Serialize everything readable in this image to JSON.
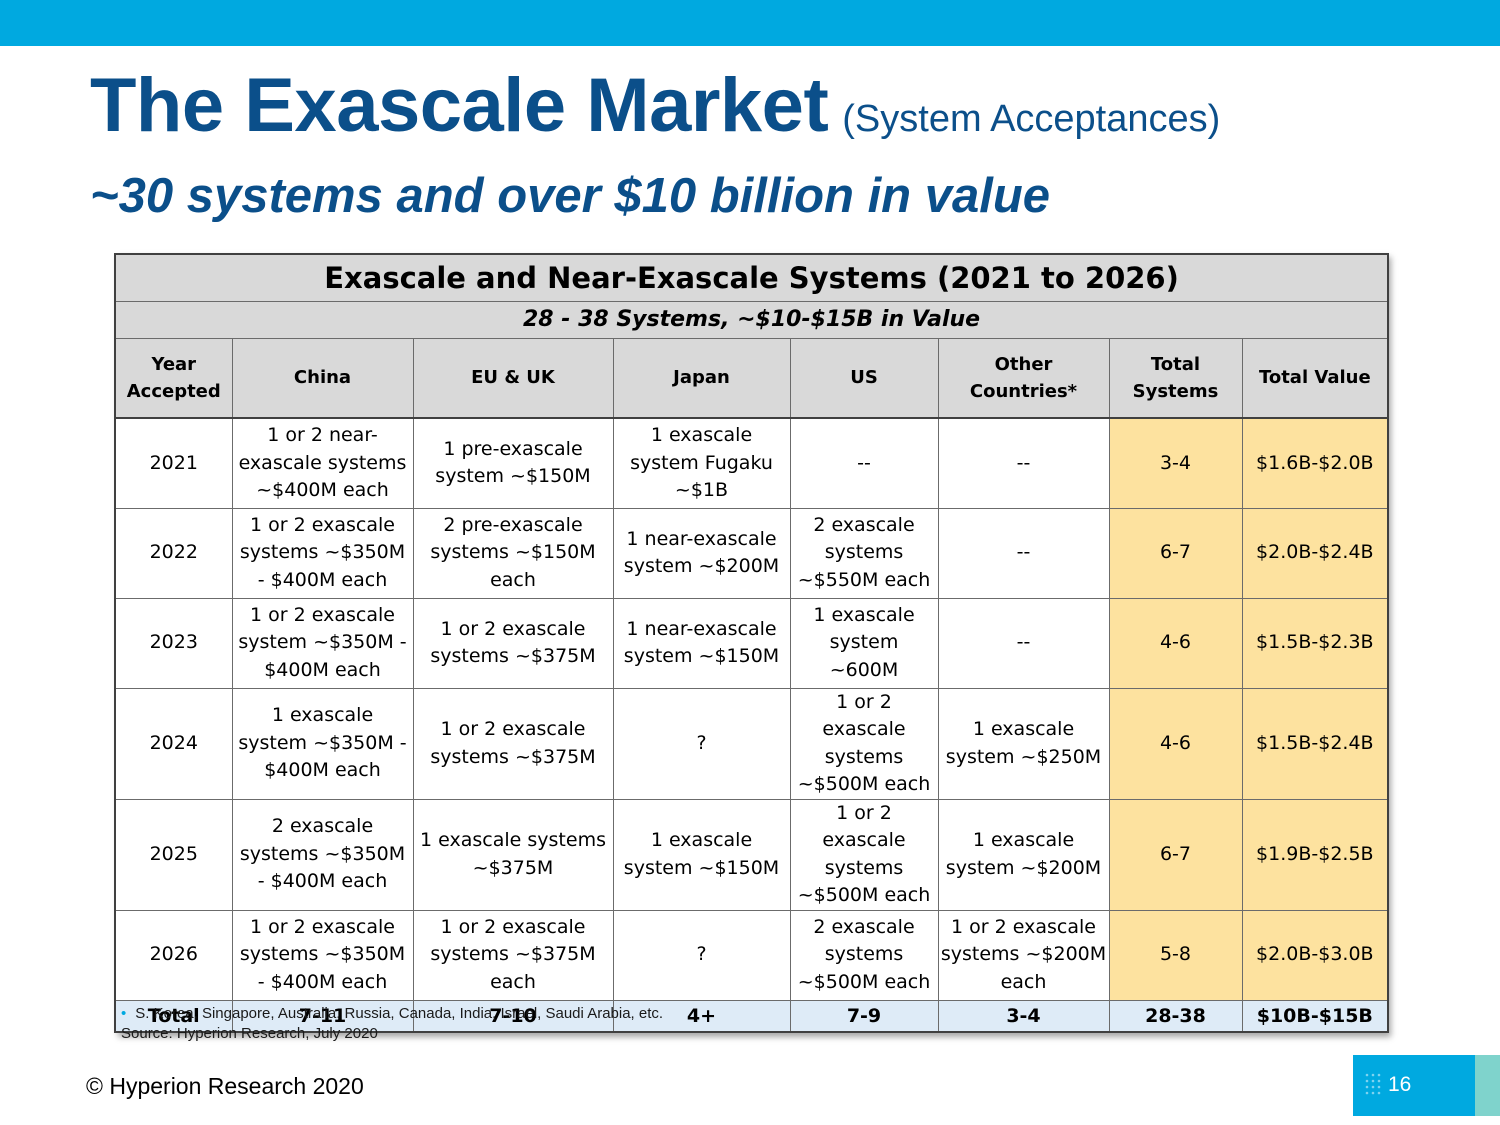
{
  "colors": {
    "accent": "#00a9e0",
    "title_blue": "#0b4f8a",
    "header_gray": "#d9d9d9",
    "total_blue": "#deebf7",
    "highlight_yellow": "#fde29f"
  },
  "title": {
    "main": "The Exascale Market",
    "paren": "(System Acceptances)"
  },
  "subtitle": "~30 systems and over $10 billion in value",
  "table": {
    "caption": "Exascale and Near-Exascale Systems (2021 to 2026)",
    "subcaption": "28 - 38 Systems, ~$10-$15B in Value",
    "headers": [
      "Year Accepted",
      "China",
      "EU & UK",
      "Japan",
      "US",
      "Other Countries*",
      "Total Systems",
      "Total Value"
    ],
    "rows": [
      [
        "2021",
        "1 or 2 near-exascale systems ~$400M each",
        "1 pre-exascale system ~$150M",
        "1 exascale system Fugaku  ~$1B",
        "--",
        "--",
        "3-4",
        "$1.6B-$2.0B"
      ],
      [
        "2022",
        "1 or 2 exascale systems ~$350M - $400M each",
        "2 pre-exascale systems ~$150M each",
        "1 near-exascale system ~$200M",
        "2 exascale systems ~$550M each",
        "--",
        "6-7",
        "$2.0B-$2.4B"
      ],
      [
        "2023",
        "1 or 2 exascale system ~$350M - $400M each",
        "1 or 2 exascale systems ~$375M",
        "1 near-exascale system ~$150M",
        "1 exascale system ~600M",
        "--",
        "4-6",
        "$1.5B-$2.3B"
      ],
      [
        "2024",
        "1 exascale system ~$350M - $400M each",
        "1 or 2 exascale systems ~$375M",
        "?",
        "1 or 2 exascale systems ~$500M each",
        "1 exascale system ~$250M",
        "4-6",
        "$1.5B-$2.4B"
      ],
      [
        "2025",
        "2 exascale systems ~$350M - $400M each",
        "1 exascale systems ~$375M",
        "1 exascale system ~$150M",
        "1 or 2 exascale systems ~$500M each",
        "1 exascale system ~$200M",
        "6-7",
        "$1.9B-$2.5B"
      ],
      [
        "2026",
        "1 or 2 exascale systems ~$350M - $400M each",
        "1 or 2 exascale systems ~$375M each",
        "?",
        "2 exascale systems ~$500M each",
        "1 or 2 exascale systems ~$200M each",
        "5-8",
        "$2.0B-$3.0B"
      ]
    ],
    "total": [
      "Total",
      "7-11",
      "7-10",
      "4+",
      "7-9",
      "3-4",
      "28-38",
      "$10B-$15B"
    ]
  },
  "footnote": {
    "bullet": "•",
    "countries": "S. Korea, Singapore, Australia, Russia, Canada, India, Israel, Saudi Arabia, etc.",
    "source": "Source: Hyperion Research, July 2020"
  },
  "copyright": "© Hyperion Research 2020",
  "page_number": "16"
}
